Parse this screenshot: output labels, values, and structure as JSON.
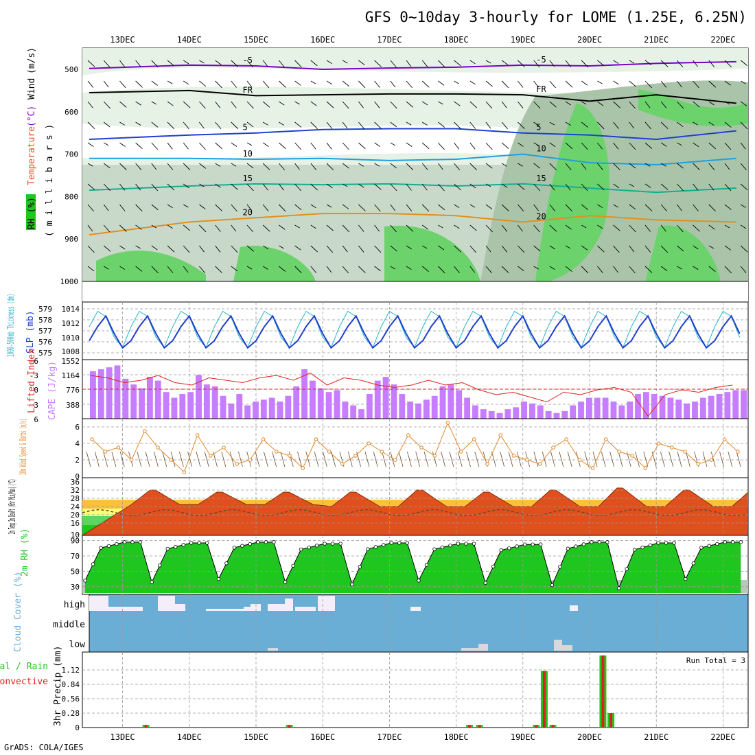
{
  "title": "GFS 0~10day 3-hourly for LOME (1.25E, 6.25N)",
  "footer": "GrADS: COLA/IGES",
  "colors": {
    "rh_green": "#1fc61f",
    "temp_cold": "#7a00c8",
    "temp_mid": "#1f6fe0",
    "temp_warm": "#e07f1f",
    "cloud_blue": "#6aaed6",
    "precip_green": "#1fc61f",
    "precip_red": "#e02020",
    "cape_purple": "#c77dff",
    "slp_blue": "#1f3fcf",
    "thick_cyan": "#22b5c5",
    "wind_orange": "#e0882a"
  },
  "chart_data": {
    "type": "meteogram",
    "days": [
      "13DEC",
      "14DEC",
      "15DEC",
      "16DEC",
      "17DEC",
      "18DEC",
      "19DEC",
      "20DEC",
      "21DEC",
      "22DEC"
    ],
    "x_range_days": [
      -0.5,
      9.2
    ],
    "panels": {
      "upper_air": {
        "ylabel_parts": [
          "RH (%)",
          "Temperature",
          "(°C)",
          "Wind",
          "(m/s)"
        ],
        "ylabel_units": "( m i l l i b a r s )",
        "yticks": [
          "500",
          "600",
          "700",
          "800",
          "900",
          "1000"
        ],
        "ytick_values": [
          500,
          600,
          700,
          800,
          900,
          1000
        ],
        "ylim": [
          450,
          1000
        ],
        "contours": [
          {
            "label": "-5",
            "color": "#7a00c8",
            "points": [
              [
                -0.5,
                498
              ],
              [
                1,
                490
              ],
              [
                2,
                492
              ],
              [
                3,
                500
              ],
              [
                4,
                497
              ],
              [
                5,
                495
              ],
              [
                6,
                490
              ],
              [
                7,
                492
              ],
              [
                8,
                486
              ],
              [
                9.2,
                482
              ]
            ]
          },
          {
            "label": "FR",
            "color": "#000000",
            "points": [
              [
                -0.5,
                555
              ],
              [
                1,
                550
              ],
              [
                2,
                562
              ],
              [
                3,
                560
              ],
              [
                4,
                558
              ],
              [
                5,
                558
              ],
              [
                6,
                560
              ],
              [
                7,
                575
              ],
              [
                8,
                560
              ],
              [
                9.2,
                580
              ]
            ]
          },
          {
            "label": "5",
            "color": "#1f3fcf",
            "points": [
              [
                -0.5,
                665
              ],
              [
                1,
                655
              ],
              [
                2,
                650
              ],
              [
                3,
                642
              ],
              [
                4,
                640
              ],
              [
                5,
                640
              ],
              [
                6,
                650
              ],
              [
                7,
                655
              ],
              [
                8,
                665
              ],
              [
                9.2,
                645
              ]
            ]
          },
          {
            "label": "10",
            "color": "#1f9fe0",
            "points": [
              [
                -0.5,
                710
              ],
              [
                1,
                710
              ],
              [
                2,
                712
              ],
              [
                3,
                710
              ],
              [
                4,
                715
              ],
              [
                5,
                712
              ],
              [
                6,
                700
              ],
              [
                7,
                720
              ],
              [
                8,
                725
              ],
              [
                9.2,
                710
              ]
            ]
          },
          {
            "label": "15",
            "color": "#10b090",
            "points": [
              [
                -0.5,
                785
              ],
              [
                1,
                775
              ],
              [
                2,
                770
              ],
              [
                3,
                772
              ],
              [
                4,
                770
              ],
              [
                5,
                775
              ],
              [
                6,
                770
              ],
              [
                7,
                780
              ],
              [
                8,
                790
              ],
              [
                9.2,
                780
              ]
            ]
          },
          {
            "label": "20",
            "color": "#e0901f",
            "points": [
              [
                -0.5,
                890
              ],
              [
                1,
                860
              ],
              [
                2,
                850
              ],
              [
                3,
                840
              ],
              [
                4,
                840
              ],
              [
                5,
                845
              ],
              [
                6,
                860
              ],
              [
                7,
                845
              ],
              [
                8,
                855
              ],
              [
                9.2,
                860
              ]
            ]
          }
        ]
      },
      "thickness_slp": {
        "ylabel_left": "1000-500mb Thickness (dm)",
        "ylabel_right": "SLP (mb)",
        "thickness_ticks": [
          "579",
          "578",
          "577",
          "576",
          "575"
        ],
        "slp_ticks": [
          "1014",
          "1012",
          "1010",
          "1008"
        ],
        "slp_values": [
          1009.5,
          1011.5,
          1013.0,
          1010.5,
          1008.5
        ],
        "thickness_values": [
          577.5,
          579.0,
          578.5,
          576.5,
          575.5
        ]
      },
      "cape_li": {
        "ylabel_left": "Lifted Index",
        "ylabel_right": "CAPE (J/kg)",
        "li_ticks": [
          "-6",
          "-3",
          "0",
          "3",
          "6"
        ],
        "cape_ticks": [
          "1552",
          "1164",
          "776",
          "388"
        ],
        "cape_ylim": [
          0,
          1552
        ],
        "li_ylim": [
          6,
          -6
        ],
        "cape_values": [
          1250,
          1300,
          1350,
          1400,
          1050,
          900,
          800,
          1100,
          1000,
          700,
          550,
          650,
          700,
          1150,
          900,
          850,
          600,
          400,
          650,
          350,
          450,
          500,
          550,
          450,
          600,
          850,
          1300,
          1000,
          800,
          700,
          750,
          450,
          350,
          250,
          650,
          1000,
          1100,
          900,
          650,
          450,
          400,
          500,
          600,
          850,
          900,
          750,
          550,
          350,
          250,
          200,
          150,
          250,
          300,
          450,
          400,
          350,
          200,
          150,
          200,
          350,
          450,
          550,
          550,
          550,
          450,
          350,
          450,
          650,
          700,
          650,
          600,
          550,
          500,
          400,
          450,
          550,
          600,
          650,
          700,
          750,
          750
        ],
        "li_values": [
          -3.0,
          -2.5,
          -1.5,
          -2.0,
          -3.0,
          -1.5,
          -1.0,
          -2.5,
          -2.0,
          -1.5,
          -2.5,
          -3.0,
          -2.0,
          -3.5,
          -1.0,
          -2.5,
          -2.0,
          -1.0,
          -0.5,
          -1.0,
          -2.0,
          -1.0,
          -1.5,
          0.0,
          1.0,
          0.5,
          1.5,
          2.5,
          0.5,
          1.0,
          0.0,
          -0.5,
          0.5,
          5.5,
          1.0,
          0.0,
          0.5,
          -0.5,
          -1.0
        ]
      },
      "wind10m": {
        "ylabel": "10m Wind Speed & Barbs (m/s)",
        "yticks": [
          "6",
          "4",
          "2",
          "0"
        ],
        "ylim": [
          0,
          6.5
        ],
        "values": [
          4.5,
          3.0,
          3.5,
          2.0,
          5.5,
          3.5,
          2.0,
          0.5,
          5.0,
          2.5,
          3.5,
          1.5,
          2.0,
          4.5,
          3.0,
          2.5,
          1.0,
          4.5,
          3.0,
          1.5,
          2.5,
          4.0,
          3.0,
          2.0,
          5.0,
          3.5,
          2.5,
          6.5,
          3.0,
          4.5,
          1.5,
          5.0,
          2.5,
          2.0,
          1.5,
          3.5,
          4.5,
          2.0,
          1.0,
          4.5,
          3.0,
          2.5,
          1.0,
          4.0,
          3.5,
          3.0,
          1.5,
          2.0,
          4.5,
          3.0
        ]
      },
      "temp2m": {
        "ylabel": "2m Temp 2m DewPt (6hr Min/Max) (°C)",
        "yticks": [
          "36",
          "32",
          "28",
          "24",
          "20",
          "16",
          "10"
        ],
        "ylim": [
          10,
          36
        ],
        "daily_max": [
          32,
          31,
          31,
          31,
          32,
          31,
          32,
          33,
          32,
          32
        ],
        "daily_min": [
          25,
          25,
          25,
          24,
          24,
          24,
          24,
          24,
          24,
          24
        ],
        "dewpoint": 21
      },
      "rh2m": {
        "ylabel": "2m RH (%)",
        "yticks": [
          "90",
          "70",
          "50",
          "30"
        ],
        "ylim": [
          20,
          95
        ],
        "daily_max": [
          88,
          87,
          88,
          86,
          87,
          86,
          85,
          88,
          87,
          88
        ],
        "daily_min": [
          38,
          36,
          40,
          36,
          33,
          38,
          35,
          32,
          28,
          40
        ]
      },
      "cloud": {
        "ylabel": "Cloud Cover (%)",
        "levels": [
          "high",
          "middle",
          "low"
        ]
      },
      "precip": {
        "ylabel_left_parts": [
          "Total / Rain",
          "Convective"
        ],
        "ylabel": "3hr Precip (mm)",
        "yticks": [
          "1.12",
          "0.84",
          "0.56",
          "0.28",
          "0"
        ],
        "ylim": [
          0,
          1.4
        ],
        "run_total": "Run Total = 3",
        "events": [
          [
            0.35,
            0.05
          ],
          [
            2.5,
            0.05
          ],
          [
            5.2,
            0.05
          ],
          [
            5.35,
            0.05
          ],
          [
            6.2,
            0.05
          ],
          [
            6.32,
            1.1
          ],
          [
            6.45,
            0.05
          ],
          [
            7.2,
            1.4
          ],
          [
            7.32,
            0.28
          ]
        ]
      }
    }
  }
}
